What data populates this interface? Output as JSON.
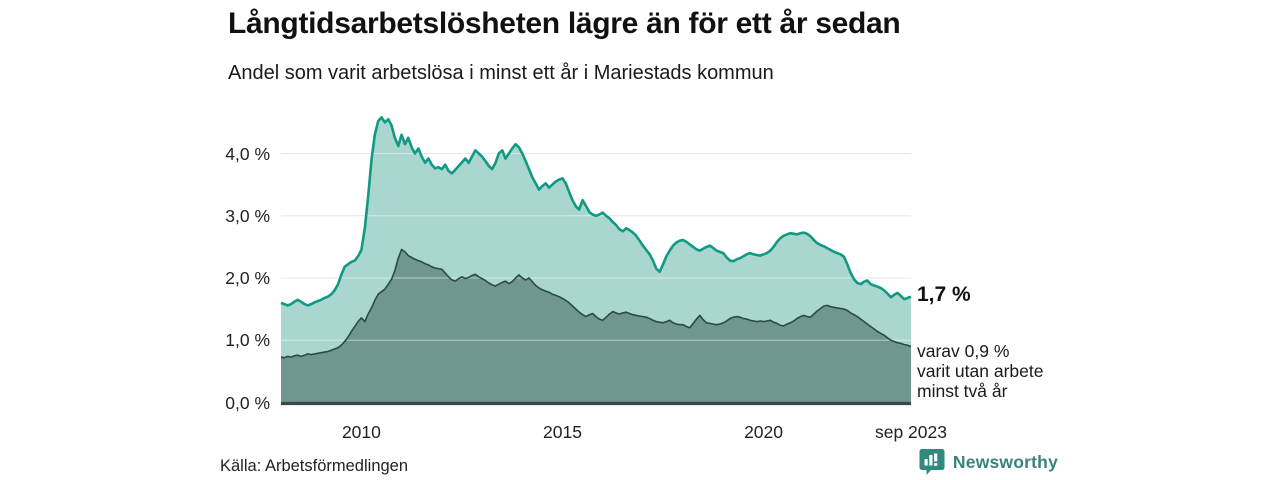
{
  "header": {
    "title": "Långtidsarbetslösheten lägre än för ett år sedan",
    "subtitle": "Andel som varit arbetslösa i minst ett år i Mariestads kommun"
  },
  "annotations": {
    "latest_value": "1,7 %",
    "latest_note": "varav 0,9 %\nvarit utan arbete\nminst två år"
  },
  "footer": {
    "source": "Källa: Arbetsförmedlingen",
    "brand": "Newsworthy"
  },
  "colors": {
    "line_total": "#129982",
    "fill_total": "#a9d6cf",
    "line_two_years": "#2c4a45",
    "fill_two_years": "#709690",
    "gridline": "#d8d8d8",
    "gridline_overlay": "rgba(255,255,255,0.42)",
    "baseline": "#3c4845",
    "brand_teal": "#2f8a80"
  },
  "chart_data": {
    "type": "area",
    "title": "Långtidsarbetslösheten lägre än för ett år sedan",
    "subtitle": "Andel som varit arbetslösa i minst ett år i Mariestads kommun",
    "frequency": "monthly",
    "x_start": "2008-01",
    "x_end": "2023-09",
    "ylim": [
      0,
      4.85
    ],
    "grid": true,
    "legend": "none",
    "y_ticks": [
      {
        "value": 0,
        "label": "0,0 %"
      },
      {
        "value": 1,
        "label": "1,0 %"
      },
      {
        "value": 2,
        "label": "2,0 %"
      },
      {
        "value": 3,
        "label": "3,0 %"
      },
      {
        "value": 4,
        "label": "4,0 %"
      }
    ],
    "x_ticks": [
      {
        "time": 2010.0,
        "label": "2010"
      },
      {
        "time": 2015.0,
        "label": "2015"
      },
      {
        "time": 2020.0,
        "label": "2020"
      },
      {
        "time": 2023.667,
        "label": "sep 2023"
      }
    ],
    "series": [
      {
        "name": "Arbetslösa minst ett år",
        "latest_label": "1,7 %",
        "values": [
          1.6,
          1.58,
          1.56,
          1.58,
          1.62,
          1.65,
          1.62,
          1.58,
          1.56,
          1.58,
          1.61,
          1.63,
          1.65,
          1.68,
          1.7,
          1.74,
          1.8,
          1.9,
          2.05,
          2.18,
          2.22,
          2.26,
          2.28,
          2.35,
          2.45,
          2.8,
          3.3,
          3.9,
          4.3,
          4.52,
          4.58,
          4.5,
          4.55,
          4.45,
          4.25,
          4.12,
          4.3,
          4.15,
          4.25,
          4.1,
          4.0,
          4.08,
          3.95,
          3.85,
          3.92,
          3.82,
          3.76,
          3.78,
          3.75,
          3.82,
          3.72,
          3.68,
          3.74,
          3.8,
          3.86,
          3.92,
          3.85,
          3.95,
          4.05,
          4.0,
          3.95,
          3.88,
          3.8,
          3.75,
          3.85,
          4.0,
          4.05,
          3.92,
          4.0,
          4.08,
          4.15,
          4.1,
          4.0,
          3.88,
          3.75,
          3.62,
          3.52,
          3.42,
          3.48,
          3.52,
          3.45,
          3.5,
          3.55,
          3.58,
          3.6,
          3.52,
          3.38,
          3.25,
          3.15,
          3.1,
          3.25,
          3.16,
          3.06,
          3.02,
          3.0,
          3.02,
          3.05,
          3.0,
          2.96,
          2.9,
          2.85,
          2.78,
          2.75,
          2.8,
          2.77,
          2.73,
          2.68,
          2.6,
          2.52,
          2.45,
          2.38,
          2.28,
          2.15,
          2.1,
          2.22,
          2.35,
          2.44,
          2.52,
          2.57,
          2.6,
          2.61,
          2.58,
          2.54,
          2.5,
          2.46,
          2.44,
          2.47,
          2.5,
          2.52,
          2.48,
          2.44,
          2.42,
          2.4,
          2.33,
          2.28,
          2.27,
          2.3,
          2.32,
          2.35,
          2.38,
          2.4,
          2.38,
          2.37,
          2.36,
          2.38,
          2.4,
          2.44,
          2.5,
          2.58,
          2.64,
          2.68,
          2.7,
          2.72,
          2.71,
          2.7,
          2.72,
          2.73,
          2.71,
          2.67,
          2.61,
          2.56,
          2.53,
          2.51,
          2.48,
          2.45,
          2.42,
          2.4,
          2.38,
          2.34,
          2.22,
          2.08,
          1.98,
          1.92,
          1.9,
          1.94,
          1.96,
          1.9,
          1.88,
          1.86,
          1.84,
          1.8,
          1.75,
          1.69,
          1.73,
          1.76,
          1.71,
          1.66,
          1.68,
          1.7
        ]
      },
      {
        "name": "varav utan arbete minst två år",
        "latest_label": "0,9 %",
        "values": [
          0.73,
          0.72,
          0.74,
          0.73,
          0.75,
          0.76,
          0.74,
          0.76,
          0.78,
          0.77,
          0.78,
          0.79,
          0.8,
          0.81,
          0.82,
          0.84,
          0.86,
          0.88,
          0.92,
          0.98,
          1.05,
          1.14,
          1.22,
          1.3,
          1.36,
          1.3,
          1.42,
          1.52,
          1.64,
          1.74,
          1.78,
          1.82,
          1.9,
          1.98,
          2.12,
          2.32,
          2.46,
          2.42,
          2.36,
          2.33,
          2.3,
          2.28,
          2.26,
          2.23,
          2.21,
          2.18,
          2.16,
          2.15,
          2.14,
          2.08,
          2.02,
          1.97,
          1.95,
          1.99,
          2.02,
          1.99,
          2.01,
          2.04,
          2.06,
          2.02,
          1.99,
          1.96,
          1.92,
          1.89,
          1.87,
          1.9,
          1.93,
          1.95,
          1.91,
          1.94,
          2.0,
          2.05,
          2.0,
          1.97,
          2.0,
          1.94,
          1.88,
          1.84,
          1.81,
          1.79,
          1.77,
          1.74,
          1.72,
          1.7,
          1.67,
          1.64,
          1.6,
          1.55,
          1.5,
          1.45,
          1.41,
          1.38,
          1.41,
          1.43,
          1.38,
          1.34,
          1.32,
          1.37,
          1.42,
          1.46,
          1.44,
          1.42,
          1.44,
          1.45,
          1.43,
          1.41,
          1.4,
          1.39,
          1.38,
          1.37,
          1.35,
          1.32,
          1.3,
          1.29,
          1.28,
          1.3,
          1.32,
          1.28,
          1.26,
          1.25,
          1.25,
          1.22,
          1.2,
          1.27,
          1.34,
          1.4,
          1.33,
          1.28,
          1.27,
          1.26,
          1.25,
          1.26,
          1.28,
          1.31,
          1.35,
          1.37,
          1.38,
          1.37,
          1.35,
          1.34,
          1.32,
          1.31,
          1.3,
          1.31,
          1.3,
          1.31,
          1.32,
          1.29,
          1.27,
          1.24,
          1.23,
          1.26,
          1.28,
          1.31,
          1.35,
          1.38,
          1.4,
          1.38,
          1.37,
          1.42,
          1.47,
          1.51,
          1.55,
          1.56,
          1.54,
          1.53,
          1.52,
          1.51,
          1.5,
          1.48,
          1.44,
          1.41,
          1.38,
          1.34,
          1.3,
          1.26,
          1.22,
          1.18,
          1.14,
          1.11,
          1.08,
          1.04,
          1.0,
          0.98,
          0.96,
          0.95,
          0.93,
          0.92,
          0.9
        ]
      }
    ]
  }
}
